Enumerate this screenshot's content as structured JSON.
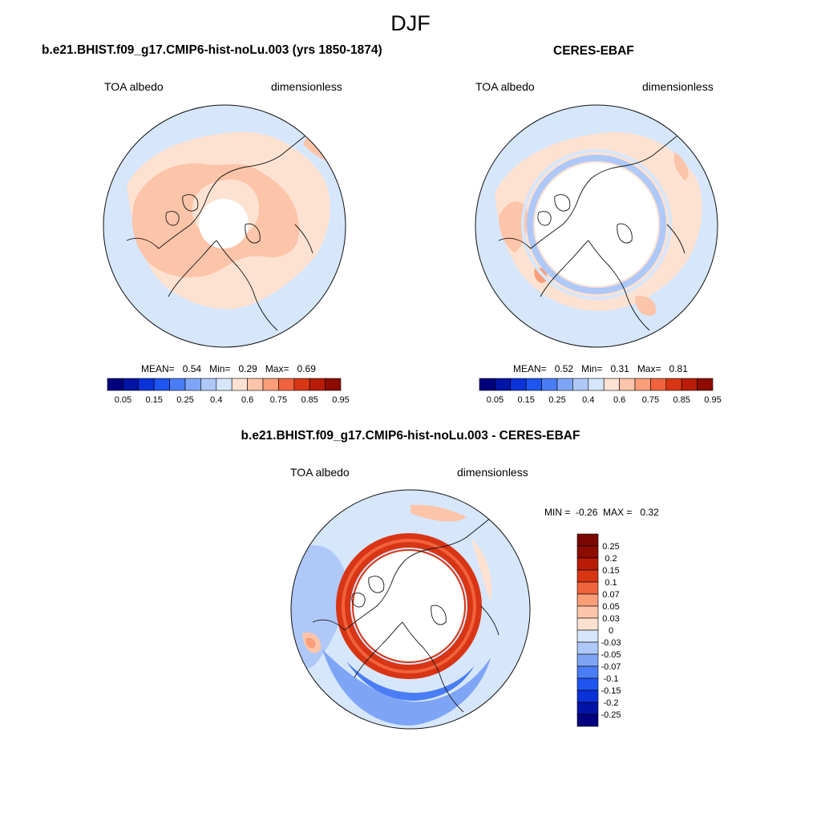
{
  "season": "DJF",
  "panels": {
    "model": {
      "title": "b.e21.BHIST.f09_g17.CMIP6-hist-noLu.003 (yrs 1850-1874)",
      "left_label": "TOA albedo",
      "right_label": "dimensionless",
      "stats": {
        "mean_label": "MEAN=",
        "mean": "0.54",
        "min_label": "Min=",
        "min": "0.29",
        "max_label": "Max=",
        "max": "0.69"
      }
    },
    "obs": {
      "title": "CERES-EBAF",
      "left_label": "TOA albedo",
      "right_label": "dimensionless",
      "stats": {
        "mean_label": "MEAN=",
        "mean": "0.52",
        "min_label": "Min=",
        "min": "0.31",
        "max_label": "Max=",
        "max": "0.81"
      }
    },
    "diff": {
      "title": "b.e21.BHIST.f09_g17.CMIP6-hist-noLu.003 - CERES-EBAF",
      "left_label": "TOA albedo",
      "right_label": "dimensionless",
      "stats": {
        "min_label": "MIN =",
        "min": "-0.26",
        "max_label": "MAX =",
        "max": "0.32"
      }
    }
  },
  "chart_data": [
    {
      "type": "heatmap",
      "projection": "north-polar-stereographic",
      "title": "b.e21.BHIST.f09_g17.CMIP6-hist-noLu.003 (yrs 1850-1874)",
      "variable": "TOA albedo",
      "units": "dimensionless",
      "mean": 0.54,
      "min": 0.29,
      "max": 0.69,
      "colorbar_levels": [
        0.05,
        0.1,
        0.15,
        0.2,
        0.25,
        0.3,
        0.4,
        0.5,
        0.6,
        0.7,
        0.75,
        0.8,
        0.85,
        0.9,
        0.95
      ],
      "colorbar_tick_labels": [
        "0.05",
        "0.15",
        "0.25",
        "0.4",
        "0.6",
        "0.75",
        "0.85",
        "0.95"
      ],
      "colors": [
        "#00007e",
        "#0014a5",
        "#0a32d8",
        "#1e55f0",
        "#4a7df5",
        "#7ea5f5",
        "#aec8f8",
        "#d6e6fb",
        "#fde2d2",
        "#fcc4a8",
        "#f99e79",
        "#f0633c",
        "#d83515",
        "#b81c06",
        "#8c0c00"
      ]
    },
    {
      "type": "heatmap",
      "projection": "north-polar-stereographic",
      "title": "CERES-EBAF",
      "variable": "TOA albedo",
      "units": "dimensionless",
      "mean": 0.52,
      "min": 0.31,
      "max": 0.81,
      "colorbar_levels": [
        0.05,
        0.1,
        0.15,
        0.2,
        0.25,
        0.3,
        0.4,
        0.5,
        0.6,
        0.7,
        0.75,
        0.8,
        0.85,
        0.9,
        0.95
      ],
      "colorbar_tick_labels": [
        "0.05",
        "0.15",
        "0.25",
        "0.4",
        "0.6",
        "0.75",
        "0.85",
        "0.95"
      ],
      "colors": [
        "#00007e",
        "#0014a5",
        "#0a32d8",
        "#1e55f0",
        "#4a7df5",
        "#7ea5f5",
        "#aec8f8",
        "#d6e6fb",
        "#fde2d2",
        "#fcc4a8",
        "#f99e79",
        "#f0633c",
        "#d83515",
        "#b81c06",
        "#8c0c00"
      ]
    },
    {
      "type": "heatmap",
      "projection": "north-polar-stereographic",
      "title": "b.e21.BHIST.f09_g17.CMIP6-hist-noLu.003 - CERES-EBAF",
      "variable": "TOA albedo",
      "units": "dimensionless",
      "min": -0.26,
      "max": 0.32,
      "colorbar_levels": [
        -0.25,
        -0.2,
        -0.15,
        -0.1,
        -0.07,
        -0.05,
        -0.03,
        0,
        0.03,
        0.05,
        0.07,
        0.1,
        0.15,
        0.2,
        0.25
      ],
      "colorbar_tick_labels": [
        "0.25",
        "0.2",
        "0.15",
        "0.1",
        "0.07",
        "0.05",
        "0.03",
        "0",
        "-0.03",
        "-0.05",
        "-0.07",
        "-0.1",
        "-0.15",
        "-0.2",
        "-0.25"
      ],
      "colors": [
        "#00007e",
        "#0014a5",
        "#0a32d8",
        "#1e55f0",
        "#4a7df5",
        "#7ea5f5",
        "#aec8f8",
        "#d6e6fb",
        "#fde2d2",
        "#fcc4a8",
        "#f99e79",
        "#f0633c",
        "#d83515",
        "#b81c06",
        "#8c0c00",
        "#7a0800"
      ]
    }
  ]
}
